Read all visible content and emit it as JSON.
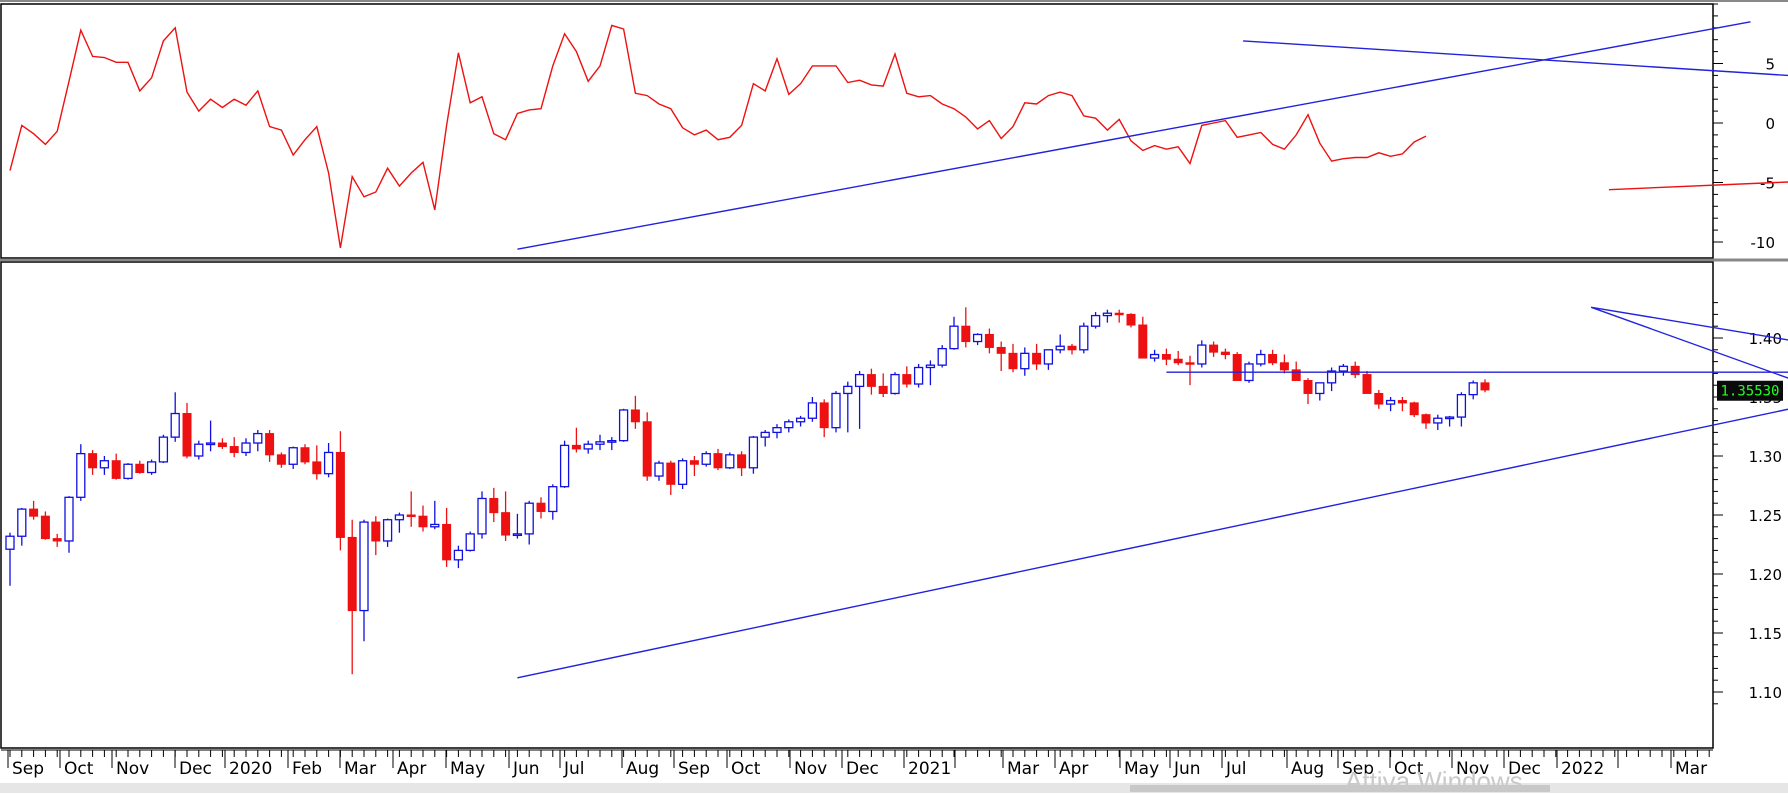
{
  "watermark": "Attiva Windows",
  "colors": {
    "up": "#1010e0",
    "down": "#ee1111",
    "trend": "#2222dd",
    "oscillator": "#ee1111",
    "last_price_bg": "#0a0a0a",
    "last_price_fg": "#22ff22"
  },
  "chart_data": [
    {
      "type": "line",
      "panel": "oscillator",
      "y_tick_labels": [
        "5",
        "0",
        "-5",
        "-10"
      ],
      "ylim": [
        -11,
        10
      ],
      "series": [
        {
          "values": [
            -4,
            -0.2,
            -0.9,
            -1.8,
            -0.7,
            3.5,
            7.8,
            5.6,
            5.5,
            5.1,
            5.1,
            2.7,
            3.8,
            6.9,
            8.0,
            2.6,
            1.0,
            2.0,
            1.3,
            2.0,
            1.5,
            2.7,
            -0.3,
            -0.6,
            -2.7,
            -1.4,
            -0.3,
            -4.2,
            -10.5,
            -4.5,
            -6.2,
            -5.8,
            -3.8,
            -5.3,
            -4.2,
            -3.3,
            -7.3,
            -0.2,
            5.9,
            1.7,
            2.2,
            -0.9,
            -1.4,
            0.8,
            1.1,
            1.2,
            4.8,
            7.5,
            6.0,
            3.5,
            4.8,
            8.2,
            7.9,
            2.5,
            2.3,
            1.6,
            1.2,
            -0.4,
            -1.0,
            -0.6,
            -1.4,
            -1.2,
            -0.2,
            3.3,
            2.7,
            5.4,
            2.4,
            3.3,
            4.8,
            4.8,
            4.8,
            3.4,
            3.6,
            3.2,
            3.1,
            5.8,
            2.5,
            2.2,
            2.3,
            1.6,
            1.2,
            0.5,
            -0.5,
            0.2,
            -1.3,
            -0.3,
            1.7,
            1.6,
            2.3,
            2.6,
            2.3,
            0.6,
            0.4,
            -0.6,
            0.3,
            -1.5,
            -2.3,
            -1.9,
            -2.2,
            -2.0,
            -3.4,
            -0.2,
            0,
            0.2,
            -1.2,
            -1.0,
            -0.8,
            -1.8,
            -2.2,
            -1.0,
            0.7,
            -1.7,
            -3.2,
            -3.0,
            -2.9,
            -2.9,
            -2.5,
            -2.8,
            -2.6,
            -1.6,
            -1.1
          ]
        }
      ],
      "trendlines": [
        {
          "x": [
            43,
            147.5
          ],
          "y": [
            -10.6,
            8.5
          ]
        },
        {
          "x": [
            104.5,
            254
          ],
          "y": [
            6.9,
            -2.5
          ]
        },
        {
          "x": [
            135.5,
            187.5
          ],
          "y": [
            -5.6,
            -3.4
          ]
        }
      ]
    },
    {
      "type": "candlestick",
      "panel": "price",
      "y_tick_labels": [
        "1.40",
        "1.35",
        "1.30",
        "1.25",
        "1.20",
        "1.15",
        "1.10"
      ],
      "ylim": [
        1.085,
        1.443
      ],
      "last_price": "1.35530",
      "x_tick_labels": [
        "Sep",
        "Oct",
        "Nov",
        "Dec",
        "2020",
        "Feb",
        "Mar",
        "Apr",
        "May",
        "Jun",
        "Jul",
        "Aug",
        "Sep",
        "Oct",
        "Nov",
        "Dec",
        "2021",
        "",
        "Mar",
        "Apr",
        "May",
        "Jun",
        "Jul",
        "Aug",
        "Sep",
        "Oct",
        "Nov",
        "Dec",
        "2022",
        "",
        "Mar"
      ],
      "candles": [
        [
          1.221,
          1.235,
          1.19,
          1.232
        ],
        [
          1.232,
          1.256,
          1.224,
          1.255
        ],
        [
          1.255,
          1.262,
          1.246,
          1.249
        ],
        [
          1.249,
          1.253,
          1.229,
          1.23
        ],
        [
          1.23,
          1.234,
          1.223,
          1.228
        ],
        [
          1.228,
          1.266,
          1.218,
          1.265
        ],
        [
          1.265,
          1.31,
          1.262,
          1.302
        ],
        [
          1.302,
          1.305,
          1.284,
          1.29
        ],
        [
          1.29,
          1.3,
          1.284,
          1.296
        ],
        [
          1.296,
          1.302,
          1.28,
          1.281
        ],
        [
          1.281,
          1.294,
          1.28,
          1.293
        ],
        [
          1.293,
          1.296,
          1.285,
          1.286
        ],
        [
          1.286,
          1.297,
          1.284,
          1.295
        ],
        [
          1.295,
          1.318,
          1.294,
          1.316
        ],
        [
          1.316,
          1.354,
          1.312,
          1.336
        ],
        [
          1.336,
          1.345,
          1.298,
          1.3
        ],
        [
          1.3,
          1.313,
          1.297,
          1.31
        ],
        [
          1.31,
          1.33,
          1.304,
          1.311
        ],
        [
          1.311,
          1.315,
          1.306,
          1.308
        ],
        [
          1.308,
          1.316,
          1.299,
          1.303
        ],
        [
          1.303,
          1.315,
          1.3,
          1.311
        ],
        [
          1.311,
          1.322,
          1.304,
          1.319
        ],
        [
          1.319,
          1.322,
          1.295,
          1.301
        ],
        [
          1.301,
          1.303,
          1.29,
          1.293
        ],
        [
          1.293,
          1.308,
          1.289,
          1.307
        ],
        [
          1.307,
          1.31,
          1.293,
          1.295
        ],
        [
          1.295,
          1.309,
          1.28,
          1.285
        ],
        [
          1.285,
          1.311,
          1.282,
          1.303
        ],
        [
          1.303,
          1.321,
          1.22,
          1.231
        ],
        [
          1.231,
          1.246,
          1.115,
          1.169
        ],
        [
          1.169,
          1.246,
          1.143,
          1.244
        ],
        [
          1.244,
          1.249,
          1.216,
          1.228
        ],
        [
          1.228,
          1.247,
          1.223,
          1.246
        ],
        [
          1.246,
          1.252,
          1.235,
          1.25
        ],
        [
          1.25,
          1.27,
          1.24,
          1.249
        ],
        [
          1.249,
          1.258,
          1.236,
          1.24
        ],
        [
          1.24,
          1.262,
          1.238,
          1.242
        ],
        [
          1.242,
          1.256,
          1.206,
          1.212
        ],
        [
          1.212,
          1.224,
          1.205,
          1.22
        ],
        [
          1.22,
          1.236,
          1.219,
          1.234
        ],
        [
          1.234,
          1.27,
          1.23,
          1.264
        ],
        [
          1.264,
          1.273,
          1.244,
          1.252
        ],
        [
          1.252,
          1.27,
          1.228,
          1.233
        ],
        [
          1.233,
          1.251,
          1.23,
          1.234
        ],
        [
          1.234,
          1.262,
          1.225,
          1.26
        ],
        [
          1.26,
          1.265,
          1.247,
          1.253
        ],
        [
          1.253,
          1.276,
          1.246,
          1.274
        ],
        [
          1.274,
          1.313,
          1.273,
          1.309
        ],
        [
          1.309,
          1.324,
          1.303,
          1.306
        ],
        [
          1.306,
          1.313,
          1.302,
          1.31
        ],
        [
          1.31,
          1.318,
          1.305,
          1.312
        ],
        [
          1.312,
          1.316,
          1.305,
          1.313
        ],
        [
          1.313,
          1.34,
          1.312,
          1.339
        ],
        [
          1.339,
          1.351,
          1.323,
          1.329
        ],
        [
          1.329,
          1.337,
          1.279,
          1.283
        ],
        [
          1.283,
          1.296,
          1.279,
          1.294
        ],
        [
          1.294,
          1.296,
          1.267,
          1.276
        ],
        [
          1.276,
          1.298,
          1.272,
          1.296
        ],
        [
          1.296,
          1.3,
          1.283,
          1.293
        ],
        [
          1.293,
          1.304,
          1.291,
          1.302
        ],
        [
          1.302,
          1.306,
          1.288,
          1.29
        ],
        [
          1.29,
          1.303,
          1.289,
          1.301
        ],
        [
          1.301,
          1.304,
          1.283,
          1.29
        ],
        [
          1.29,
          1.317,
          1.285,
          1.316
        ],
        [
          1.316,
          1.322,
          1.308,
          1.32
        ],
        [
          1.32,
          1.327,
          1.315,
          1.324
        ],
        [
          1.324,
          1.331,
          1.32,
          1.329
        ],
        [
          1.329,
          1.334,
          1.325,
          1.332
        ],
        [
          1.332,
          1.35,
          1.329,
          1.345
        ],
        [
          1.345,
          1.348,
          1.316,
          1.324
        ],
        [
          1.324,
          1.355,
          1.32,
          1.353
        ],
        [
          1.353,
          1.363,
          1.32,
          1.359
        ],
        [
          1.359,
          1.372,
          1.323,
          1.369
        ],
        [
          1.369,
          1.374,
          1.352,
          1.359
        ],
        [
          1.359,
          1.37,
          1.35,
          1.353
        ],
        [
          1.353,
          1.371,
          1.352,
          1.369
        ],
        [
          1.369,
          1.376,
          1.358,
          1.361
        ],
        [
          1.361,
          1.378,
          1.358,
          1.375
        ],
        [
          1.375,
          1.381,
          1.36,
          1.377
        ],
        [
          1.377,
          1.394,
          1.375,
          1.391
        ],
        [
          1.391,
          1.418,
          1.39,
          1.41
        ],
        [
          1.41,
          1.426,
          1.392,
          1.397
        ],
        [
          1.397,
          1.404,
          1.394,
          1.403
        ],
        [
          1.403,
          1.408,
          1.387,
          1.392
        ],
        [
          1.392,
          1.397,
          1.372,
          1.387
        ],
        [
          1.387,
          1.395,
          1.371,
          1.374
        ],
        [
          1.374,
          1.392,
          1.368,
          1.387
        ],
        [
          1.387,
          1.395,
          1.373,
          1.378
        ],
        [
          1.378,
          1.39,
          1.373,
          1.39
        ],
        [
          1.39,
          1.403,
          1.387,
          1.393
        ],
        [
          1.393,
          1.395,
          1.386,
          1.39
        ],
        [
          1.39,
          1.413,
          1.387,
          1.41
        ],
        [
          1.41,
          1.422,
          1.408,
          1.419
        ],
        [
          1.419,
          1.424,
          1.413,
          1.421
        ],
        [
          1.421,
          1.424,
          1.413,
          1.42
        ],
        [
          1.42,
          1.421,
          1.409,
          1.411
        ],
        [
          1.411,
          1.418,
          1.386,
          1.383
        ],
        [
          1.383,
          1.39,
          1.38,
          1.386
        ],
        [
          1.386,
          1.391,
          1.377,
          1.382
        ],
        [
          1.382,
          1.389,
          1.377,
          1.379
        ],
        [
          1.379,
          1.385,
          1.36,
          1.378
        ],
        [
          1.378,
          1.398,
          1.375,
          1.394
        ],
        [
          1.394,
          1.397,
          1.384,
          1.388
        ],
        [
          1.388,
          1.391,
          1.382,
          1.386
        ],
        [
          1.386,
          1.388,
          1.365,
          1.364
        ],
        [
          1.364,
          1.38,
          1.362,
          1.378
        ],
        [
          1.378,
          1.39,
          1.376,
          1.386
        ],
        [
          1.386,
          1.39,
          1.377,
          1.379
        ],
        [
          1.379,
          1.386,
          1.37,
          1.373
        ],
        [
          1.373,
          1.38,
          1.365,
          1.364
        ],
        [
          1.364,
          1.366,
          1.344,
          1.353
        ],
        [
          1.353,
          1.362,
          1.347,
          1.362
        ],
        [
          1.362,
          1.375,
          1.355,
          1.372
        ],
        [
          1.372,
          1.378,
          1.368,
          1.376
        ],
        [
          1.376,
          1.38,
          1.366,
          1.369
        ],
        [
          1.369,
          1.372,
          1.353,
          1.353
        ],
        [
          1.353,
          1.356,
          1.34,
          1.344
        ],
        [
          1.344,
          1.35,
          1.338,
          1.347
        ],
        [
          1.347,
          1.35,
          1.338,
          1.345
        ],
        [
          1.345,
          1.346,
          1.333,
          1.335
        ],
        [
          1.335,
          1.336,
          1.323,
          1.328
        ],
        [
          1.328,
          1.335,
          1.322,
          1.332
        ],
        [
          1.332,
          1.334,
          1.325,
          1.333
        ],
        [
          1.333,
          1.354,
          1.325,
          1.352
        ],
        [
          1.352,
          1.364,
          1.348,
          1.362
        ],
        [
          1.362,
          1.365,
          1.354,
          1.356
        ]
      ],
      "trendlines": [
        {
          "x": [
            43,
            166
          ],
          "y": [
            1.112,
            1.372
          ]
        },
        {
          "x": [
            98,
            166
          ],
          "y": [
            1.371,
            1.371
          ]
        },
        {
          "x": [
            134,
            166
          ],
          "y": [
            1.426,
            1.311
          ]
        },
        {
          "x": [
            134,
            166
          ],
          "y": [
            1.426,
            1.373
          ]
        }
      ],
      "annotation_ellipse": {
        "x": 156.5,
        "y": 1.37,
        "rx_weeks": 3.5,
        "ry_price": 0.012
      }
    }
  ]
}
